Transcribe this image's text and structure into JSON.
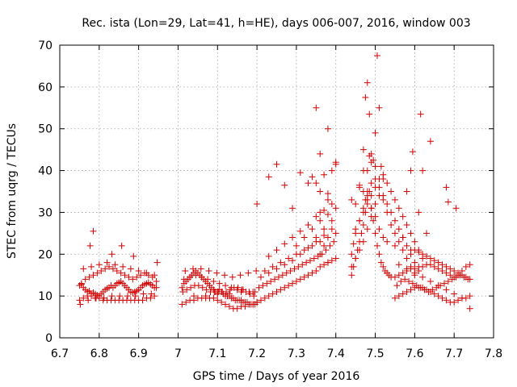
{
  "chart_data": {
    "type": "scatter",
    "title": "Rec. ista (Lon=29, Lat=41, h=HE), days 006-007, 2016, window 003",
    "xlabel": "GPS time / Days of year 2016",
    "ylabel": "STEC from uqrg / TECUs",
    "xlim": [
      6.7,
      7.8
    ],
    "ylim": [
      0,
      70
    ],
    "xticks": [
      "6.7",
      "6.8",
      "6.9",
      "7",
      "7.1",
      "7.2",
      "7.3",
      "7.4",
      "7.5",
      "7.6",
      "7.7",
      "7.8"
    ],
    "yticks": [
      "0",
      "10",
      "20",
      "30",
      "40",
      "50",
      "60",
      "70"
    ],
    "grid": true,
    "marker": "+",
    "color": "#d40000",
    "series": [
      {
        "x": [
          6.75,
          6.755,
          6.76,
          6.765,
          6.77,
          6.775,
          6.78,
          6.785,
          6.79,
          6.795,
          6.8,
          6.805,
          6.81,
          6.815,
          6.82,
          6.825,
          6.83,
          6.835,
          6.84,
          6.845,
          6.85,
          6.855,
          6.86,
          6.865,
          6.87,
          6.875,
          6.88,
          6.885,
          6.89,
          6.895,
          6.9,
          6.905,
          6.91,
          6.915,
          6.92,
          6.925,
          6.93,
          6.935,
          6.94,
          6.945,
          6.75,
          6.76,
          6.77,
          6.78,
          6.79,
          6.8,
          6.81,
          6.82,
          6.83,
          6.84,
          6.85,
          6.86,
          6.87,
          6.88,
          6.89,
          6.9,
          6.91,
          6.92,
          6.93,
          6.94,
          6.755,
          6.765,
          6.775,
          6.785,
          6.795,
          6.805,
          6.815,
          6.825,
          6.835,
          6.845,
          6.855,
          6.865,
          6.875,
          6.885,
          6.895,
          6.905,
          6.915,
          6.925,
          6.935,
          6.945,
          6.752,
          6.772,
          6.792,
          6.812,
          6.832,
          6.852,
          6.872,
          6.892,
          6.912,
          6.932,
          6.76,
          6.78,
          6.8,
          6.82,
          6.84,
          6.86,
          6.88,
          6.9,
          6.92,
          6.94,
          6.785,
          6.777,
          6.857,
          6.887,
          6.947,
          6.832,
          7.01,
          7.015,
          7.02,
          7.025,
          7.03,
          7.035,
          7.04,
          7.045,
          7.05,
          7.055,
          7.06,
          7.065,
          7.07,
          7.075,
          7.08,
          7.085,
          7.09,
          7.095,
          7.1,
          7.105,
          7.11,
          7.115,
          7.12,
          7.125,
          7.13,
          7.135,
          7.14,
          7.145,
          7.15,
          7.155,
          7.16,
          7.165,
          7.17,
          7.175,
          7.18,
          7.185,
          7.19,
          7.195,
          7.2,
          7.01,
          7.02,
          7.03,
          7.04,
          7.05,
          7.06,
          7.07,
          7.08,
          7.09,
          7.1,
          7.11,
          7.12,
          7.13,
          7.14,
          7.15,
          7.16,
          7.17,
          7.18,
          7.19,
          7.2,
          7.012,
          7.022,
          7.032,
          7.042,
          7.052,
          7.062,
          7.072,
          7.082,
          7.092,
          7.102,
          7.112,
          7.122,
          7.132,
          7.142,
          7.152,
          7.162,
          7.172,
          7.182,
          7.192,
          7.015,
          7.03,
          7.045,
          7.06,
          7.075,
          7.09,
          7.105,
          7.12,
          7.135,
          7.15,
          7.165,
          7.18,
          7.195,
          7.018,
          7.038,
          7.058,
          7.078,
          7.098,
          7.118,
          7.138,
          7.158,
          7.178,
          7.198,
          7.04,
          7.07,
          7.1,
          7.13,
          7.16,
          7.19,
          7.2,
          7.21,
          7.22,
          7.23,
          7.24,
          7.25,
          7.26,
          7.27,
          7.28,
          7.29,
          7.3,
          7.31,
          7.32,
          7.33,
          7.34,
          7.35,
          7.36,
          7.37,
          7.38,
          7.39,
          7.4,
          7.205,
          7.215,
          7.225,
          7.235,
          7.245,
          7.255,
          7.265,
          7.275,
          7.285,
          7.295,
          7.305,
          7.315,
          7.325,
          7.335,
          7.345,
          7.355,
          7.365,
          7.375,
          7.385,
          7.395,
          7.22,
          7.24,
          7.26,
          7.28,
          7.3,
          7.32,
          7.34,
          7.36,
          7.38,
          7.4,
          7.21,
          7.23,
          7.25,
          7.27,
          7.29,
          7.31,
          7.33,
          7.35,
          7.37,
          7.39,
          7.3,
          7.32,
          7.34,
          7.36,
          7.38,
          7.4,
          7.35,
          7.37,
          7.39,
          7.33,
          7.31,
          7.29,
          7.27,
          7.25,
          7.23,
          7.36,
          7.37,
          7.38,
          7.4,
          7.34,
          7.33,
          7.31,
          7.29,
          7.27,
          7.25,
          7.23,
          7.2,
          7.38,
          7.36,
          7.35,
          7.39,
          7.35,
          7.36,
          7.37,
          7.38,
          7.39,
          7.4,
          7.36,
          7.37,
          7.38,
          7.35,
          7.44,
          7.445,
          7.45,
          7.455,
          7.46,
          7.465,
          7.47,
          7.475,
          7.48,
          7.485,
          7.49,
          7.495,
          7.5,
          7.505,
          7.51,
          7.515,
          7.52,
          7.525,
          7.53,
          7.535,
          7.54,
          7.44,
          7.45,
          7.46,
          7.47,
          7.48,
          7.49,
          7.5,
          7.51,
          7.52,
          7.53,
          7.54,
          7.55,
          7.56,
          7.57,
          7.58,
          7.59,
          7.6,
          7.44,
          7.445,
          7.45,
          7.46,
          7.47,
          7.475,
          7.48,
          7.49,
          7.5,
          7.51,
          7.52,
          7.53,
          7.54,
          7.55,
          7.56,
          7.57,
          7.58,
          7.59,
          7.6,
          7.61,
          7.45,
          7.46,
          7.47,
          7.48,
          7.49,
          7.5,
          7.51,
          7.52,
          7.53,
          7.54,
          7.55,
          7.56,
          7.57,
          7.58,
          7.59,
          7.6,
          7.61,
          7.62,
          7.47,
          7.475,
          7.48,
          7.485,
          7.49,
          7.5,
          7.505,
          7.51,
          7.515,
          7.49,
          7.48,
          7.5,
          7.52,
          7.485,
          7.47,
          7.46,
          7.495,
          7.44,
          7.45,
          7.46,
          7.47,
          7.48,
          7.49,
          7.5,
          7.51,
          7.52,
          7.53,
          7.55,
          7.57,
          7.59,
          7.55,
          7.56,
          7.57,
          7.58,
          7.59,
          7.6,
          7.61,
          7.62,
          7.63,
          7.64,
          7.65,
          7.66,
          7.67,
          7.68,
          7.69,
          7.7,
          7.71,
          7.72,
          7.73,
          7.74,
          7.55,
          7.56,
          7.57,
          7.58,
          7.59,
          7.6,
          7.61,
          7.62,
          7.63,
          7.64,
          7.65,
          7.66,
          7.67,
          7.68,
          7.69,
          7.7,
          7.71,
          7.72,
          7.73,
          7.74,
          7.555,
          7.565,
          7.575,
          7.585,
          7.595,
          7.605,
          7.615,
          7.625,
          7.635,
          7.645,
          7.655,
          7.665,
          7.675,
          7.685,
          7.695,
          7.705,
          7.715,
          7.725,
          7.735,
          7.6,
          7.61,
          7.62,
          7.63,
          7.64,
          7.65,
          7.66,
          7.67,
          7.68,
          7.69,
          7.7,
          7.71,
          7.72,
          7.73,
          7.74,
          7.56,
          7.58,
          7.6,
          7.62,
          7.64,
          7.66,
          7.68,
          7.7,
          7.72,
          7.74,
          7.58,
          7.59,
          7.61,
          7.615,
          7.62,
          7.64,
          7.68,
          7.685,
          7.705,
          7.595,
          7.63
        ],
        "y": [
          12.5,
          12.8,
          12.0,
          11.5,
          11.0,
          11.2,
          10.5,
          10.8,
          10.5,
          10.2,
          10.0,
          10.5,
          11.0,
          11.5,
          11.8,
          12.0,
          12.5,
          12.0,
          12.5,
          13.0,
          13.2,
          13.5,
          13.0,
          12.5,
          12.0,
          11.5,
          11.0,
          10.8,
          11.0,
          11.2,
          11.5,
          12.0,
          12.5,
          12.8,
          13.0,
          13.2,
          12.8,
          12.5,
          12.0,
          12.0,
          9.0,
          9.5,
          10.0,
          10.0,
          9.5,
          9.5,
          9.0,
          9.0,
          9.0,
          9.0,
          9.0,
          9.0,
          9.0,
          9.0,
          9.0,
          9.0,
          9.0,
          9.5,
          9.5,
          10.0,
          13.0,
          14.0,
          14.5,
          15.0,
          15.5,
          16.0,
          16.5,
          17.0,
          16.5,
          16.0,
          15.5,
          15.0,
          14.5,
          14.0,
          14.5,
          15.0,
          15.5,
          15.0,
          14.5,
          13.5,
          8.0,
          9.0,
          9.5,
          9.5,
          10.0,
          10.0,
          10.0,
          10.0,
          10.5,
          10.5,
          16.5,
          17.0,
          17.5,
          18.0,
          17.5,
          17.0,
          16.5,
          16.0,
          15.5,
          15.0,
          25.5,
          22.0,
          22.0,
          19.5,
          18.0,
          20.0,
          12.0,
          13.0,
          13.5,
          14.0,
          14.5,
          15.0,
          15.5,
          16.0,
          15.5,
          15.0,
          14.5,
          14.0,
          13.5,
          13.0,
          12.5,
          12.0,
          11.5,
          11.0,
          11.0,
          11.5,
          11.0,
          10.5,
          10.0,
          10.0,
          10.0,
          9.5,
          9.5,
          9.0,
          9.0,
          9.0,
          9.0,
          8.5,
          8.5,
          8.5,
          8.0,
          8.0,
          8.0,
          8.0,
          8.5,
          8.0,
          8.5,
          9.0,
          9.0,
          9.5,
          9.5,
          9.5,
          9.5,
          9.5,
          9.0,
          8.5,
          8.0,
          7.5,
          7.0,
          7.0,
          7.5,
          7.5,
          8.0,
          8.0,
          8.5,
          11.0,
          11.5,
          12.0,
          12.5,
          12.5,
          12.0,
          11.5,
          11.0,
          11.0,
          11.0,
          11.0,
          11.0,
          11.5,
          12.0,
          12.0,
          11.5,
          11.0,
          10.5,
          10.0,
          14.0,
          14.5,
          15.0,
          14.5,
          14.0,
          13.5,
          13.0,
          12.5,
          12.0,
          11.5,
          11.5,
          11.0,
          11.0,
          16.0,
          16.5,
          16.5,
          16.0,
          15.5,
          15.0,
          14.5,
          15.0,
          15.5,
          16.0,
          10.0,
          10.0,
          10.5,
          10.5,
          11.0,
          11.0,
          8.5,
          9.0,
          9.5,
          10.0,
          10.5,
          11.0,
          11.5,
          12.0,
          12.5,
          13.0,
          13.5,
          14.0,
          14.5,
          15.0,
          15.5,
          16.0,
          17.0,
          17.5,
          18.0,
          18.5,
          19.0,
          12.0,
          12.5,
          13.0,
          13.5,
          14.0,
          14.5,
          15.0,
          15.5,
          16.0,
          16.5,
          17.0,
          17.5,
          18.0,
          18.5,
          19.0,
          19.5,
          20.0,
          21.0,
          22.0,
          23.0,
          16.0,
          17.0,
          18.0,
          19.0,
          20.0,
          21.0,
          22.0,
          23.0,
          24.0,
          25.0,
          14.5,
          15.5,
          16.5,
          17.5,
          18.5,
          20.0,
          21.5,
          23.0,
          24.5,
          26.0,
          22.0,
          24.0,
          26.0,
          28.0,
          29.5,
          31.0,
          29.0,
          30.5,
          32.0,
          27.0,
          25.5,
          24.0,
          22.5,
          21.0,
          19.5,
          44.0,
          39.0,
          34.5,
          41.5,
          38.5,
          37.0,
          39.5,
          31.0,
          36.5,
          41.5,
          38.5,
          32.0,
          33.0,
          35.0,
          37.0,
          40.0,
          55.0,
          30.0,
          26.0,
          50.0,
          28.0,
          42.0,
          20.0,
          22.0,
          18.0,
          24.0,
          15.0,
          17.0,
          19.0,
          21.0,
          23.0,
          25.0,
          27.0,
          30.0,
          33.0,
          35.0,
          31.0,
          28.0,
          25.0,
          22.0,
          20.0,
          18.0,
          17.0,
          16.0,
          15.5,
          15.0,
          14.5,
          17.0,
          19.0,
          21.0,
          23.0,
          26.0,
          29.0,
          32.0,
          34.0,
          33.0,
          30.0,
          27.0,
          25.0,
          23.0,
          21.0,
          19.0,
          17.0,
          15.0,
          20.0,
          22.5,
          25.0,
          28.0,
          31.0,
          33.0,
          35.0,
          37.0,
          38.0,
          36.0,
          34.0,
          32.0,
          30.0,
          28.0,
          26.0,
          24.0,
          22.0,
          20.0,
          18.0,
          16.0,
          26.0,
          28.0,
          30.0,
          32.0,
          34.0,
          36.0,
          38.0,
          39.0,
          37.0,
          35.0,
          33.0,
          31.0,
          29.0,
          27.0,
          25.0,
          23.0,
          21.0,
          19.0,
          45.0,
          57.5,
          61.0,
          53.5,
          42.0,
          49.0,
          67.5,
          55.0,
          41.0,
          44.0,
          40.0,
          41.0,
          38.0,
          43.5,
          40.0,
          36.5,
          42.5,
          33.0,
          32.0,
          36.0,
          35.0,
          34.0,
          31.0,
          29.0,
          26.0,
          24.0,
          23.0,
          22.0,
          24.0,
          21.0,
          14.5,
          15.0,
          15.5,
          16.0,
          16.5,
          16.5,
          17.0,
          17.0,
          17.5,
          17.5,
          17.0,
          16.5,
          16.0,
          15.5,
          15.0,
          14.5,
          15.0,
          16.0,
          17.0,
          17.5,
          9.5,
          10.0,
          10.5,
          11.0,
          11.5,
          12.0,
          12.0,
          12.0,
          11.5,
          11.0,
          10.5,
          10.0,
          9.5,
          9.0,
          8.5,
          8.5,
          9.0,
          9.5,
          9.5,
          10.0,
          12.5,
          13.5,
          14.0,
          13.5,
          13.0,
          12.5,
          12.0,
          11.5,
          11.0,
          11.5,
          12.0,
          12.5,
          13.0,
          13.5,
          14.0,
          14.5,
          15.0,
          14.5,
          14.0,
          21.0,
          20.5,
          20.0,
          19.5,
          19.0,
          18.5,
          18.0,
          17.5,
          17.0,
          16.5,
          16.0,
          15.5,
          15.0,
          14.5,
          14.0,
          17.5,
          16.5,
          15.5,
          14.5,
          13.5,
          12.5,
          11.5,
          10.5,
          9.5,
          7.0,
          35.0,
          40.0,
          30.0,
          53.5,
          40.0,
          47.0,
          36.0,
          32.5,
          31.0,
          44.5,
          25.0
        ]
      }
    ]
  }
}
